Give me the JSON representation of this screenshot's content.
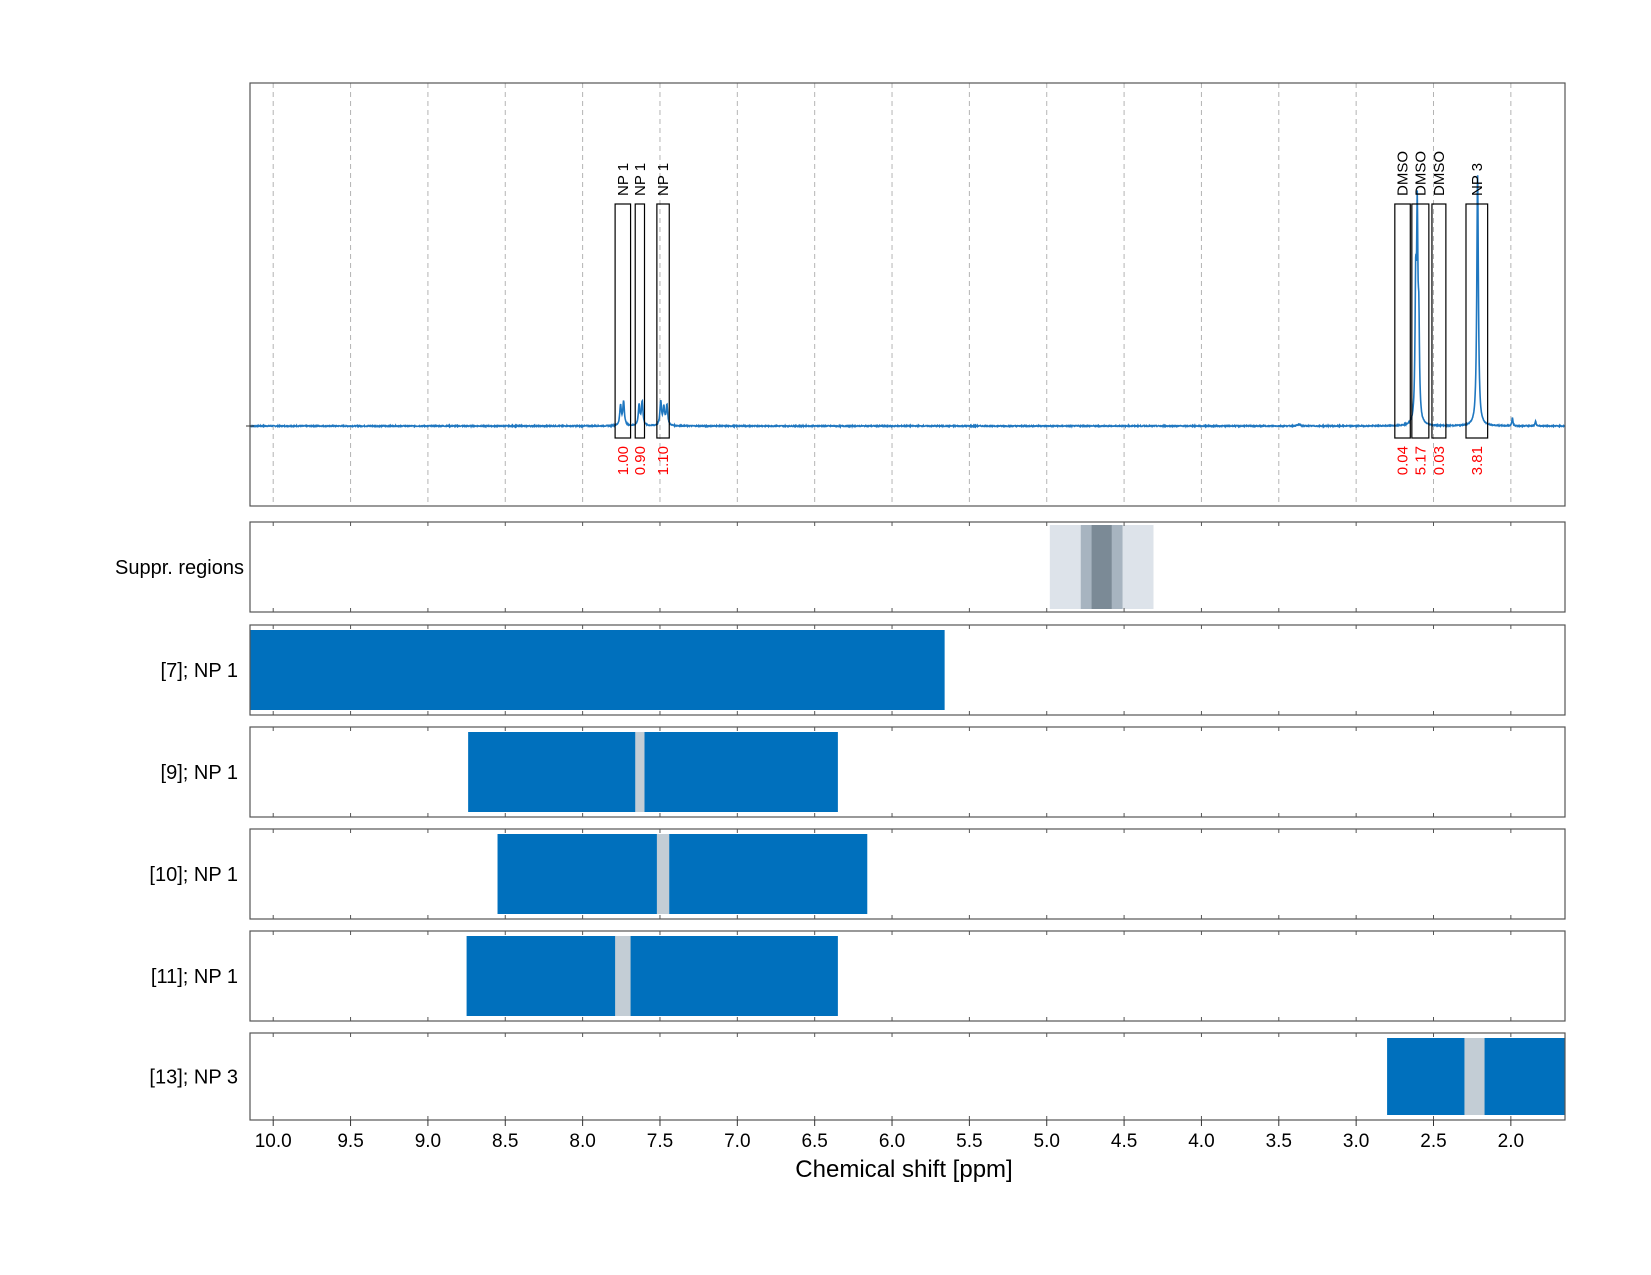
{
  "chart_data": {
    "type": "nmr_spectrum",
    "xlabel": "Chemical shift [ppm]",
    "xlim": [
      10.15,
      1.65
    ],
    "x_ticks": [
      {
        "value": 10.0,
        "label": "10.0"
      },
      {
        "value": 9.5,
        "label": "9.5"
      },
      {
        "value": 9.0,
        "label": "9.0"
      },
      {
        "value": 8.5,
        "label": "8.5"
      },
      {
        "value": 8.0,
        "label": "8.0"
      },
      {
        "value": 7.5,
        "label": "7.5"
      },
      {
        "value": 7.0,
        "label": "7.0"
      },
      {
        "value": 6.5,
        "label": "6.5"
      },
      {
        "value": 6.0,
        "label": "6.0"
      },
      {
        "value": 5.5,
        "label": "5.5"
      },
      {
        "value": 5.0,
        "label": "5.0"
      },
      {
        "value": 4.5,
        "label": "4.5"
      },
      {
        "value": 4.0,
        "label": "4.0"
      },
      {
        "value": 3.5,
        "label": "3.5"
      },
      {
        "value": 3.0,
        "label": "3.0"
      },
      {
        "value": 2.5,
        "label": "2.5"
      },
      {
        "value": 2.0,
        "label": "2.0"
      }
    ],
    "grid": true,
    "colors": {
      "spectrum": "#1f77c0",
      "bar": "#0070bd",
      "gap": "#c3cdd5",
      "supp_light": "#dde3ea",
      "supp_mid": "#a7b4c0",
      "supp_dark": "#7b8a96",
      "integral": "#ff0000",
      "frame": "#555555",
      "grid": "#b4b4b4"
    },
    "spectrum": {
      "peaks": [
        {
          "ppm": 7.755,
          "height": 0.05,
          "width": 0.006
        },
        {
          "ppm": 7.735,
          "height": 0.06,
          "width": 0.006
        },
        {
          "ppm": 7.635,
          "height": 0.05,
          "width": 0.006
        },
        {
          "ppm": 7.615,
          "height": 0.06,
          "width": 0.006
        },
        {
          "ppm": 7.495,
          "height": 0.06,
          "width": 0.006
        },
        {
          "ppm": 7.475,
          "height": 0.045,
          "width": 0.006
        },
        {
          "ppm": 7.455,
          "height": 0.05,
          "width": 0.006
        },
        {
          "ppm": 2.615,
          "height": 0.32,
          "width": 0.005
        },
        {
          "ppm": 2.605,
          "height": 0.48,
          "width": 0.005
        },
        {
          "ppm": 2.595,
          "height": 0.22,
          "width": 0.005
        },
        {
          "ppm": 2.215,
          "height": 0.63,
          "width": 0.006
        },
        {
          "ppm": 1.99,
          "height": 0.02,
          "width": 0.004
        },
        {
          "ppm": 1.84,
          "height": 0.012,
          "width": 0.004
        },
        {
          "ppm": 3.37,
          "height": 0.004,
          "width": 0.01
        }
      ],
      "annotations": [
        {
          "name": "NP 1",
          "start": 7.79,
          "end": 7.69,
          "integral": "1.00"
        },
        {
          "name": "NP 1",
          "start": 7.66,
          "end": 7.6,
          "integral": "0.90"
        },
        {
          "name": "NP 1",
          "start": 7.52,
          "end": 7.44,
          "integral": "1.10"
        },
        {
          "name": "DMSO",
          "start": 2.75,
          "end": 2.65,
          "integral": "0.04"
        },
        {
          "name": "DMSO",
          "start": 2.64,
          "end": 2.53,
          "integral": "5.17"
        },
        {
          "name": "DMSO",
          "start": 2.51,
          "end": 2.42,
          "integral": "0.03"
        },
        {
          "name": "NP 3",
          "start": 2.29,
          "end": 2.15,
          "integral": "3.81"
        }
      ]
    },
    "suppression_regions": {
      "label": "Suppr. regions",
      "bands": [
        {
          "start": 4.98,
          "end": 4.31,
          "level": "light"
        },
        {
          "start": 4.78,
          "end": 4.51,
          "level": "mid"
        },
        {
          "start": 4.71,
          "end": 4.58,
          "level": "dark"
        }
      ]
    },
    "ranges": [
      {
        "label": "[7]; NP 1",
        "start": 10.15,
        "end": 5.66,
        "gap": null
      },
      {
        "label": "[9]; NP 1",
        "start": 8.74,
        "end": 6.35,
        "gap": [
          7.66,
          7.6
        ]
      },
      {
        "label": "[10]; NP 1",
        "start": 8.55,
        "end": 6.16,
        "gap": [
          7.52,
          7.44
        ]
      },
      {
        "label": "[11]; NP 1",
        "start": 8.75,
        "end": 6.35,
        "gap": [
          7.79,
          7.69
        ]
      },
      {
        "label": "[13]; NP 3",
        "start": 2.8,
        "end": 1.65,
        "gap": [
          2.3,
          2.17
        ]
      }
    ]
  }
}
